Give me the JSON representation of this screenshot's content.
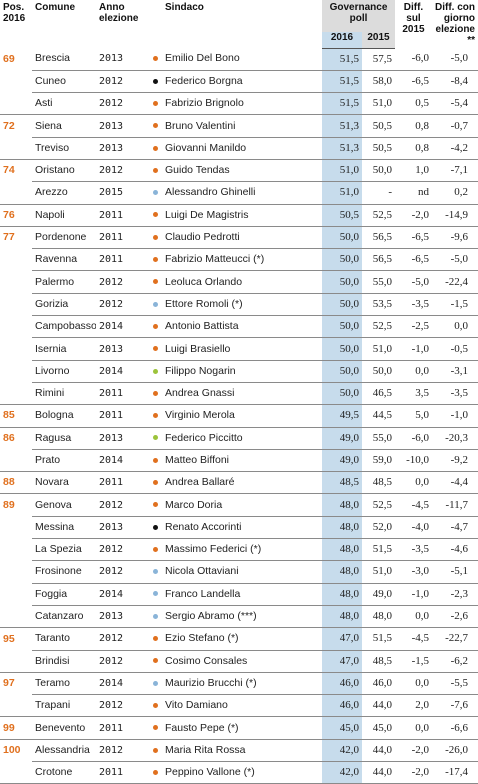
{
  "header": {
    "pos": "Pos.",
    "pos_year": "2016",
    "comune": "Comune",
    "anno": "Anno",
    "anno2": "elezione",
    "sindaco": "Sindaco",
    "gov1": "Governance",
    "gov2": "poll",
    "y2016": "2016",
    "y2015": "2015",
    "diff1": "Diff.",
    "diff2": "sul",
    "diff3": "2015",
    "dg1": "Diff. con",
    "dg2": "giorno",
    "dg3": "elezione **"
  },
  "colors": {
    "orange": "#e0701e",
    "black": "#111111",
    "lightblue": "#8ab4d8",
    "green": "#9cc33a",
    "gov2016_bg": "#c7dcec"
  },
  "rows": [
    {
      "pos": "69",
      "comune": "Brescia",
      "anno": "2013",
      "dot": "orange",
      "sindaco": "Emilio Del Bono",
      "g16": "51,5",
      "g15": "57,5",
      "diff": "-6,0",
      "dg": "-5,0"
    },
    {
      "pos": "",
      "comune": "Cuneo",
      "anno": "2012",
      "dot": "black",
      "sindaco": "Federico Borgna",
      "g16": "51,5",
      "g15": "58,0",
      "diff": "-6,5",
      "dg": "-8,4"
    },
    {
      "pos": "",
      "comune": "Asti",
      "anno": "2012",
      "dot": "orange",
      "sindaco": "Fabrizio Brignolo",
      "g16": "51,5",
      "g15": "51,0",
      "diff": "0,5",
      "dg": "-5,4"
    },
    {
      "pos": "72",
      "comune": "Siena",
      "anno": "2013",
      "dot": "orange",
      "sindaco": "Bruno Valentini",
      "g16": "51,3",
      "g15": "50,5",
      "diff": "0,8",
      "dg": "-0,7"
    },
    {
      "pos": "",
      "comune": "Treviso",
      "anno": "2013",
      "dot": "orange",
      "sindaco": "Giovanni Manildo",
      "g16": "51,3",
      "g15": "50,5",
      "diff": "0,8",
      "dg": "-4,2"
    },
    {
      "pos": "74",
      "comune": "Oristano",
      "anno": "2012",
      "dot": "orange",
      "sindaco": "Guido Tendas",
      "g16": "51,0",
      "g15": "50,0",
      "diff": "1,0",
      "dg": "-7,1"
    },
    {
      "pos": "",
      "comune": "Arezzo",
      "anno": "2015",
      "dot": "lightblue",
      "sindaco": "Alessandro Ghinelli",
      "g16": "51,0",
      "g15": "-",
      "diff": "nd",
      "dg": "0,2"
    },
    {
      "pos": "76",
      "comune": "Napoli",
      "anno": "2011",
      "dot": "orange",
      "sindaco": "Luigi De Magistris",
      "g16": "50,5",
      "g15": "52,5",
      "diff": "-2,0",
      "dg": "-14,9"
    },
    {
      "pos": "77",
      "comune": "Pordenone",
      "anno": "2011",
      "dot": "orange",
      "sindaco": "Claudio Pedrotti",
      "g16": "50,0",
      "g15": "56,5",
      "diff": "-6,5",
      "dg": "-9,6"
    },
    {
      "pos": "",
      "comune": "Ravenna",
      "anno": "2011",
      "dot": "orange",
      "sindaco": "Fabrizio Matteucci (*)",
      "g16": "50,0",
      "g15": "56,5",
      "diff": "-6,5",
      "dg": "-5,0"
    },
    {
      "pos": "",
      "comune": "Palermo",
      "anno": "2012",
      "dot": "orange",
      "sindaco": "Leoluca Orlando",
      "g16": "50,0",
      "g15": "55,0",
      "diff": "-5,0",
      "dg": "-22,4"
    },
    {
      "pos": "",
      "comune": "Gorizia",
      "anno": "2012",
      "dot": "lightblue",
      "sindaco": "Ettore Romoli (*)",
      "g16": "50,0",
      "g15": "53,5",
      "diff": "-3,5",
      "dg": "-1,5"
    },
    {
      "pos": "",
      "comune": "Campobasso",
      "anno": "2014",
      "dot": "orange",
      "sindaco": "Antonio Battista",
      "g16": "50,0",
      "g15": "52,5",
      "diff": "-2,5",
      "dg": "0,0"
    },
    {
      "pos": "",
      "comune": "Isernia",
      "anno": "2013",
      "dot": "orange",
      "sindaco": "Luigi Brasiello",
      "g16": "50,0",
      "g15": "51,0",
      "diff": "-1,0",
      "dg": "-0,5"
    },
    {
      "pos": "",
      "comune": "Livorno",
      "anno": "2014",
      "dot": "green",
      "sindaco": "Filippo Nogarin",
      "g16": "50,0",
      "g15": "50,0",
      "diff": "0,0",
      "dg": "-3,1"
    },
    {
      "pos": "",
      "comune": "Rimini",
      "anno": "2011",
      "dot": "orange",
      "sindaco": "Andrea Gnassi",
      "g16": "50,0",
      "g15": "46,5",
      "diff": "3,5",
      "dg": "-3,5"
    },
    {
      "pos": "85",
      "comune": "Bologna",
      "anno": "2011",
      "dot": "orange",
      "sindaco": "Virginio Merola",
      "g16": "49,5",
      "g15": "44,5",
      "diff": "5,0",
      "dg": "-1,0"
    },
    {
      "pos": "86",
      "comune": "Ragusa",
      "anno": "2013",
      "dot": "green",
      "sindaco": "Federico Piccitto",
      "g16": "49,0",
      "g15": "55,0",
      "diff": "-6,0",
      "dg": "-20,3"
    },
    {
      "pos": "",
      "comune": "Prato",
      "anno": "2014",
      "dot": "orange",
      "sindaco": "Matteo Biffoni",
      "g16": "49,0",
      "g15": "59,0",
      "diff": "-10,0",
      "dg": "-9,2"
    },
    {
      "pos": "88",
      "comune": "Novara",
      "anno": "2011",
      "dot": "orange",
      "sindaco": "Andrea Ballaré",
      "g16": "48,5",
      "g15": "48,5",
      "diff": "0,0",
      "dg": "-4,4"
    },
    {
      "pos": "89",
      "comune": "Genova",
      "anno": "2012",
      "dot": "orange",
      "sindaco": "Marco Doria",
      "g16": "48,0",
      "g15": "52,5",
      "diff": "-4,5",
      "dg": "-11,7"
    },
    {
      "pos": "",
      "comune": "Messina",
      "anno": "2013",
      "dot": "black",
      "sindaco": "Renato Accorinti",
      "g16": "48,0",
      "g15": "52,0",
      "diff": "-4,0",
      "dg": "-4,7"
    },
    {
      "pos": "",
      "comune": "La Spezia",
      "anno": "2012",
      "dot": "orange",
      "sindaco": "Massimo Federici (*)",
      "g16": "48,0",
      "g15": "51,5",
      "diff": "-3,5",
      "dg": "-4,6"
    },
    {
      "pos": "",
      "comune": "Frosinone",
      "anno": "2012",
      "dot": "lightblue",
      "sindaco": "Nicola Ottaviani",
      "g16": "48,0",
      "g15": "51,0",
      "diff": "-3,0",
      "dg": "-5,1"
    },
    {
      "pos": "",
      "comune": "Foggia",
      "anno": "2014",
      "dot": "lightblue",
      "sindaco": "Franco Landella",
      "g16": "48,0",
      "g15": "49,0",
      "diff": "-1,0",
      "dg": "-2,3"
    },
    {
      "pos": "",
      "comune": "Catanzaro",
      "anno": "2013",
      "dot": "lightblue",
      "sindaco": "Sergio Abramo (***)",
      "g16": "48,0",
      "g15": "48,0",
      "diff": "0,0",
      "dg": "-2,6"
    },
    {
      "pos": "95",
      "comune": "Taranto",
      "anno": "2012",
      "dot": "orange",
      "sindaco": "Ezio Stefano (*)",
      "g16": "47,0",
      "g15": "51,5",
      "diff": "-4,5",
      "dg": "-22,7"
    },
    {
      "pos": "",
      "comune": "Brindisi",
      "anno": "2012",
      "dot": "orange",
      "sindaco": "Cosimo Consales",
      "g16": "47,0",
      "g15": "48,5",
      "diff": "-1,5",
      "dg": "-6,2"
    },
    {
      "pos": "97",
      "comune": "Teramo",
      "anno": "2014",
      "dot": "lightblue",
      "sindaco": "Maurizio Brucchi (*)",
      "g16": "46,0",
      "g15": "46,0",
      "diff": "0,0",
      "dg": "-5,5"
    },
    {
      "pos": "",
      "comune": "Trapani",
      "anno": "2012",
      "dot": "orange",
      "sindaco": "Vito Damiano",
      "g16": "46,0",
      "g15": "44,0",
      "diff": "2,0",
      "dg": "-7,6"
    },
    {
      "pos": "99",
      "comune": "Benevento",
      "anno": "2011",
      "dot": "orange",
      "sindaco": "Fausto Pepe (*)",
      "g16": "45,0",
      "g15": "45,0",
      "diff": "0,0",
      "dg": "-6,6"
    },
    {
      "pos": "100",
      "comune": "Alessandria",
      "anno": "2012",
      "dot": "orange",
      "sindaco": "Maria Rita Rossa",
      "g16": "42,0",
      "g15": "44,0",
      "diff": "-2,0",
      "dg": "-26,0"
    },
    {
      "pos": "",
      "comune": "Crotone",
      "anno": "2011",
      "dot": "orange",
      "sindaco": "Peppino Vallone (*)",
      "g16": "42,0",
      "g15": "44,0",
      "diff": "-2,0",
      "dg": "-17,4"
    }
  ]
}
